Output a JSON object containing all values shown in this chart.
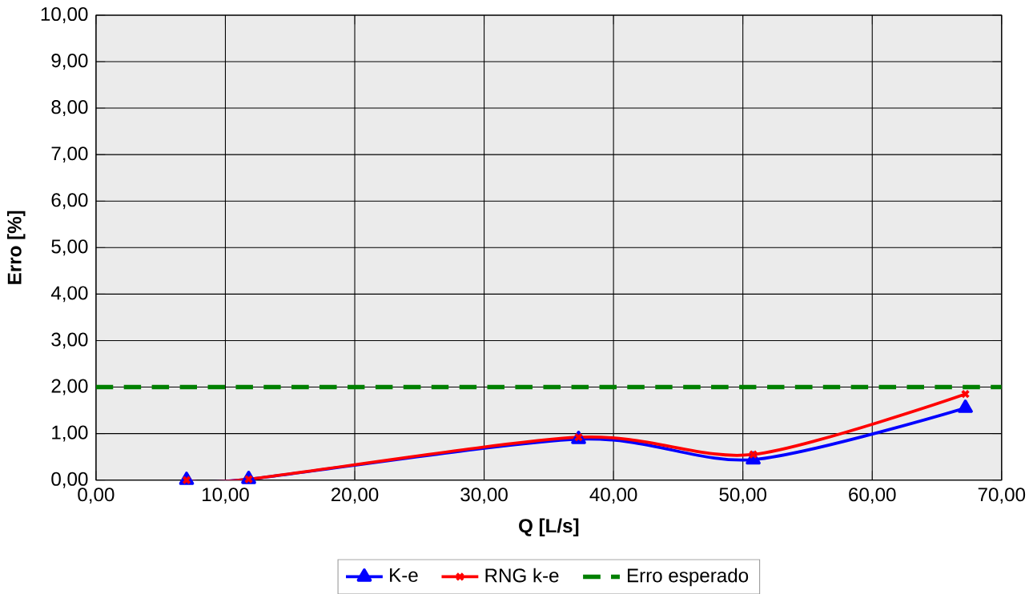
{
  "chart_data": {
    "type": "line",
    "xlabel": "Q [L/s]",
    "ylabel": "Erro [%]",
    "xlim": [
      0,
      70
    ],
    "ylim": [
      0,
      10
    ],
    "xticks": [
      {
        "value": 0,
        "label": "0,00"
      },
      {
        "value": 10,
        "label": "10,00"
      },
      {
        "value": 20,
        "label": "20,00"
      },
      {
        "value": 30,
        "label": "30,00"
      },
      {
        "value": 40,
        "label": "40,00"
      },
      {
        "value": 50,
        "label": "50,00"
      },
      {
        "value": 60,
        "label": "60,00"
      },
      {
        "value": 70,
        "label": "70,00"
      }
    ],
    "yticks": [
      {
        "value": 0,
        "label": "0,00"
      },
      {
        "value": 1,
        "label": "1,00"
      },
      {
        "value": 2,
        "label": "2,00"
      },
      {
        "value": 3,
        "label": "3,00"
      },
      {
        "value": 4,
        "label": "4,00"
      },
      {
        "value": 5,
        "label": "5,00"
      },
      {
        "value": 6,
        "label": "6,00"
      },
      {
        "value": 7,
        "label": "7,00"
      },
      {
        "value": 8,
        "label": "8,00"
      },
      {
        "value": 9,
        "label": "9,00"
      },
      {
        "value": 10,
        "label": "10,00"
      }
    ],
    "grid": true,
    "legend": "bottom",
    "series": [
      {
        "name": "K-e",
        "color": "#0000ff",
        "marker": "triangle",
        "x": [
          7.0,
          11.8,
          37.3,
          50.8,
          67.2
        ],
        "values": [
          0.0,
          0.02,
          0.88,
          0.44,
          1.55
        ]
      },
      {
        "name": "RNG k-e",
        "color": "#ff0000",
        "marker": "cross",
        "x": [
          7.0,
          11.8,
          37.3,
          50.8,
          67.2
        ],
        "values": [
          0.0,
          0.02,
          0.92,
          0.55,
          1.85
        ]
      },
      {
        "name": "Erro esperado",
        "color": "#008000",
        "marker": "none",
        "line_style": "dashed",
        "x": [
          0,
          70
        ],
        "values": [
          2,
          2
        ]
      }
    ]
  }
}
